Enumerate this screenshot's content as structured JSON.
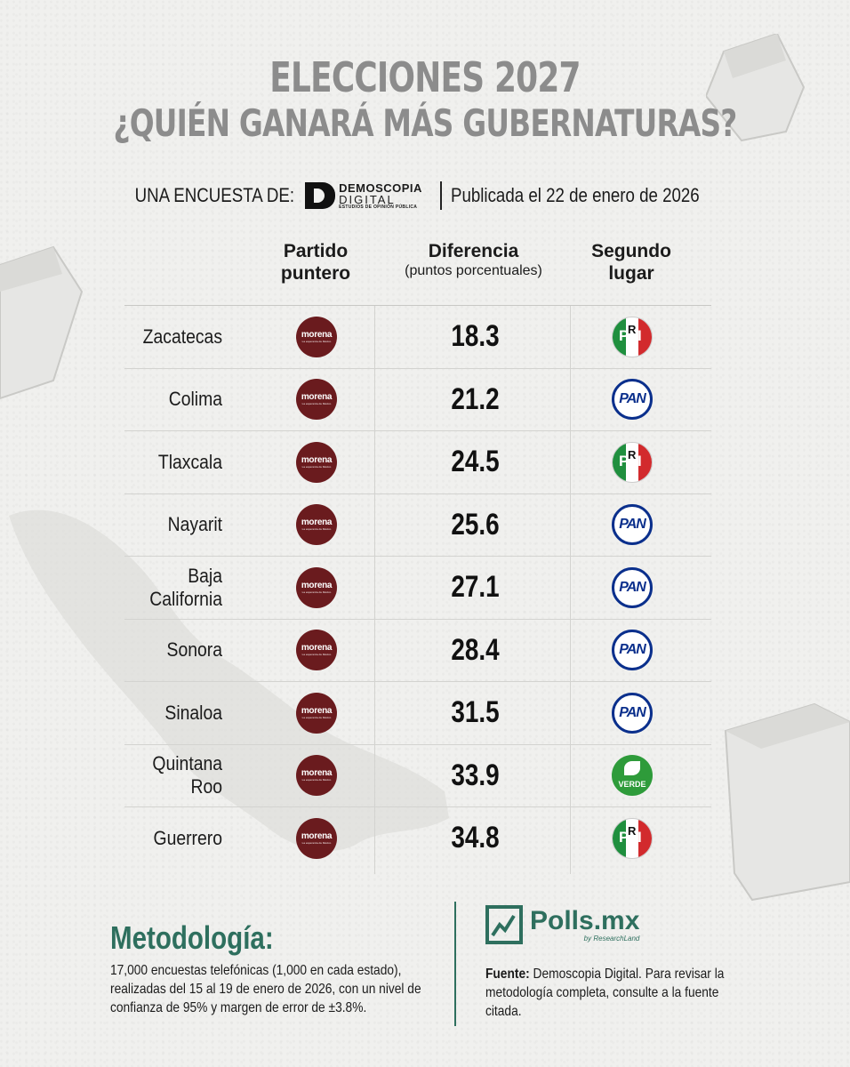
{
  "title": {
    "line1": "ELECCIONES 2027",
    "line2": "¿QUIÉN GANARÁ MÁS GUBERNATURAS?"
  },
  "survey": {
    "label": "UNA ENCUESTA DE:",
    "logo_line1": "DEMOSCOPIA",
    "logo_line2": "DIGITAL",
    "logo_line3": "ESTUDIOS DE OPINIÓN PÚBLICA",
    "published": "Publicada el 22 de enero de 2026"
  },
  "headers": {
    "party_line1": "Partido",
    "party_line2": "puntero",
    "diff_line1": "Diferencia",
    "diff_line2": "(puntos porcentuales)",
    "second_line1": "Segundo",
    "second_line2": "lugar"
  },
  "leader_logo": {
    "name": "morena",
    "tagline": "La esperanza de México"
  },
  "rows": [
    {
      "state": "Zacatecas",
      "diff": "18.3",
      "second": "PRI"
    },
    {
      "state": "Colima",
      "diff": "21.2",
      "second": "PAN"
    },
    {
      "state": "Tlaxcala",
      "diff": "24.5",
      "second": "PRI"
    },
    {
      "state": "Nayarit",
      "diff": "25.6",
      "second": "PAN"
    },
    {
      "state": "Baja California",
      "diff": "27.1",
      "second": "PAN"
    },
    {
      "state": "Sonora",
      "diff": "28.4",
      "second": "PAN"
    },
    {
      "state": "Sinaloa",
      "diff": "31.5",
      "second": "PAN"
    },
    {
      "state": "Quintana Roo",
      "diff": "33.9",
      "second": "VERDE"
    },
    {
      "state": "Guerrero",
      "diff": "34.8",
      "second": "PRI"
    }
  ],
  "party_logos": {
    "PRI": {
      "letters": [
        "P",
        "R",
        "I"
      ],
      "colors": [
        "#1f8f3e",
        "#ffffff",
        "#d22a2d"
      ]
    },
    "PAN": {
      "text": "PAN",
      "color": "#0a2f8c"
    },
    "VERDE": {
      "text": "VERDE",
      "color": "#2e9b3a"
    }
  },
  "methodology": {
    "title": "Metodología:",
    "text": "17,000 encuestas telefónicas (1,000 en cada estado), realizadas del 15 al 19 de enero de 2026, con un nivel de confianza de 95% y margen de error de ±3.8%."
  },
  "brand": {
    "name": "Polls.mx",
    "sub": "by ResearchLand"
  },
  "source": {
    "label": "Fuente:",
    "text": " Demoscopia Digital. Para revisar la metodología completa, consulte a la fuente citada."
  },
  "colors": {
    "accent": "#2e6f5e",
    "morena": "#6a1b1e",
    "title_gray": "#8c8c8c"
  }
}
